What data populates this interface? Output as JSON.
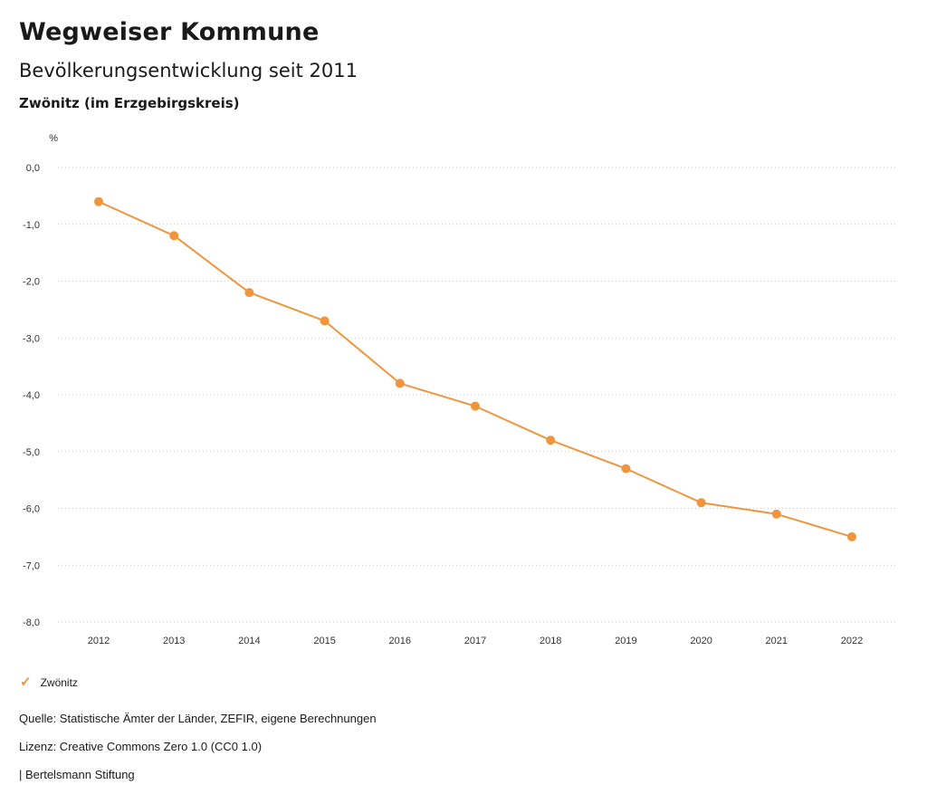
{
  "header": {
    "title": "Wegweiser Kommune",
    "subtitle": "Bevölkerungsentwicklung seit 2011",
    "region": "Zwönitz (im Erzgebirgskreis)"
  },
  "chart_data": {
    "type": "line",
    "title": "Bevölkerungsentwicklung seit 2011",
    "subtitle": "Zwönitz (im Erzgebirgskreis)",
    "unit": "%",
    "categories": [
      "2012",
      "2013",
      "2014",
      "2015",
      "2016",
      "2017",
      "2018",
      "2019",
      "2020",
      "2021",
      "2022"
    ],
    "series": [
      {
        "name": "Zwönitz",
        "values": [
          -0.6,
          -1.2,
          -2.2,
          -2.7,
          -3.8,
          -4.2,
          -4.8,
          -5.3,
          -5.9,
          -6.1,
          -6.5
        ]
      }
    ],
    "ylim": [
      -8.0,
      0.0
    ],
    "ytick_step": 1.0,
    "yticklabels": [
      "0,0",
      "-1,0",
      "-2,0",
      "-3,0",
      "-4,0",
      "-5,0",
      "-6,0",
      "-7,0",
      "-8,0"
    ],
    "grid": "horizontal-dotted",
    "line_color": "#F0953E",
    "legend_position": "bottom-left"
  },
  "legend": {
    "check_icon": "✓",
    "label": "Zwönitz",
    "color": "#F0953E"
  },
  "footer": {
    "source": "Quelle: Statistische Ämter der Länder, ZEFIR, eigene Berechnungen",
    "license": "Lizenz: Creative Commons Zero 1.0 (CC0 1.0)",
    "attribution": "| Bertelsmann Stiftung"
  }
}
